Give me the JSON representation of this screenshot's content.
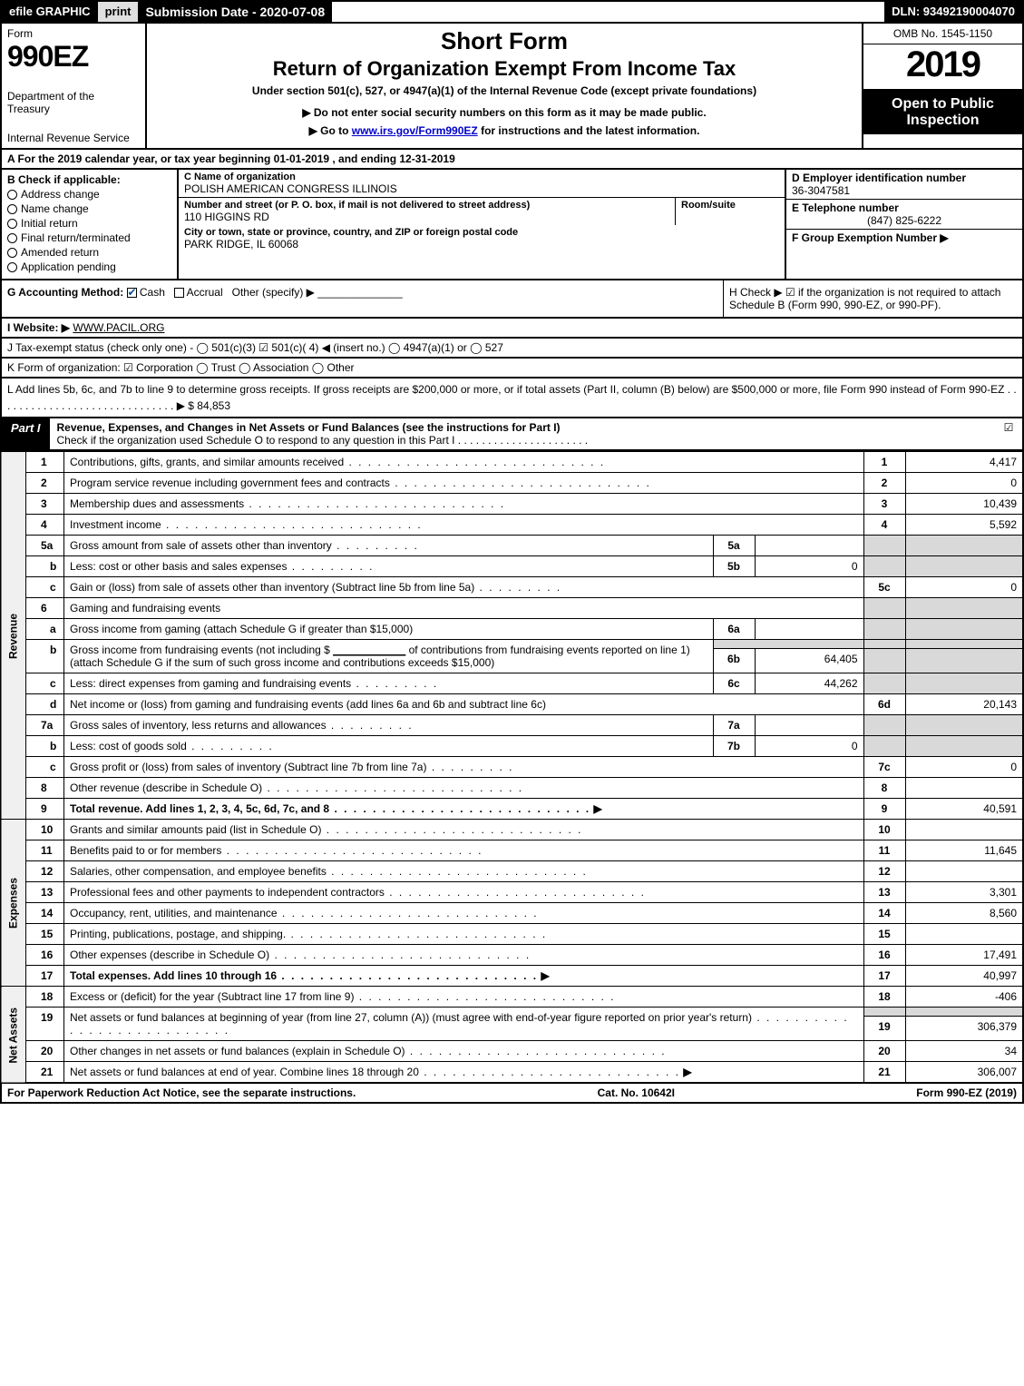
{
  "top_bar": {
    "efile": "efile GRAPHIC",
    "print": "print",
    "submission": "Submission Date - 2020-07-08",
    "dln": "DLN: 93492190004070"
  },
  "header": {
    "form_word": "Form",
    "form_code": "990EZ",
    "dept1": "Department of the Treasury",
    "dept2": "Internal Revenue Service",
    "short_form": "Short Form",
    "title2": "Return of Organization Exempt From Income Tax",
    "subtitle": "Under section 501(c), 527, or 4947(a)(1) of the Internal Revenue Code (except private foundations)",
    "note1": "▶ Do not enter social security numbers on this form as it may be made public.",
    "note2_pre": "▶ Go to ",
    "note2_link": "www.irs.gov/Form990EZ",
    "note2_post": " for instructions and the latest information.",
    "omb": "OMB No. 1545-1150",
    "year": "2019",
    "open_public": "Open to Public Inspection"
  },
  "line_a": "A  For the 2019 calendar year, or tax year beginning 01-01-2019 , and ending 12-31-2019",
  "section_b": {
    "title": "B  Check if applicable:",
    "items": [
      "Address change",
      "Name change",
      "Initial return",
      "Final return/terminated",
      "Amended return",
      "Application pending"
    ]
  },
  "section_c": {
    "name_label": "C Name of organization",
    "org_name": "POLISH AMERICAN CONGRESS ILLINOIS",
    "street_label": "Number and street (or P. O. box, if mail is not delivered to street address)",
    "street": "110 HIGGINS RD",
    "suite_label": "Room/suite",
    "suite": "",
    "city_label": "City or town, state or province, country, and ZIP or foreign postal code",
    "city": "PARK RIDGE, IL  60068"
  },
  "section_d": {
    "label": "D Employer identification number",
    "value": "36-3047581"
  },
  "section_e": {
    "label": "E Telephone number",
    "value": "(847) 825-6222"
  },
  "section_f": {
    "label": "F Group Exemption Number  ▶",
    "value": ""
  },
  "row_g": {
    "label": "G Accounting Method:",
    "cash": "Cash",
    "accrual": "Accrual",
    "other": "Other (specify) ▶"
  },
  "row_h": "H  Check ▶ ☑ if the organization is not required to attach Schedule B (Form 990, 990-EZ, or 990-PF).",
  "row_i": {
    "pre": "I Website: ▶",
    "value": "WWW.PACIL.ORG"
  },
  "row_j": "J Tax-exempt status (check only one) - ◯ 501(c)(3)  ☑ 501(c)( 4) ◀ (insert no.)  ◯ 4947(a)(1) or  ◯ 527",
  "row_k": "K Form of organization:  ☑ Corporation  ◯ Trust  ◯ Association  ◯ Other",
  "row_l": {
    "text": "L Add lines 5b, 6c, and 7b to line 9 to determine gross receipts. If gross receipts are $200,000 or more, or if total assets (Part II, column (B) below) are $500,000 or more, file Form 990 instead of Form 990-EZ  . . . . . . . . . . . . . . . . . . . . . . . . . . . . . . ▶",
    "value": "$ 84,853"
  },
  "part1": {
    "label": "Part I",
    "title": "Revenue, Expenses, and Changes in Net Assets or Fund Balances (see the instructions for Part I)",
    "subtitle": "Check if the organization used Schedule O to respond to any question in this Part I  . . . . . . . . . . . . . . . . . . . . . .",
    "checked": "☑"
  },
  "side_labels": {
    "revenue": "Revenue",
    "expenses": "Expenses",
    "netassets": "Net Assets"
  },
  "lines": {
    "l1": {
      "ln": "1",
      "desc": "Contributions, gifts, grants, and similar amounts received",
      "rl": "1",
      "rv": "4,417"
    },
    "l2": {
      "ln": "2",
      "desc": "Program service revenue including government fees and contracts",
      "rl": "2",
      "rv": "0"
    },
    "l3": {
      "ln": "3",
      "desc": "Membership dues and assessments",
      "rl": "3",
      "rv": "10,439"
    },
    "l4": {
      "ln": "4",
      "desc": "Investment income",
      "rl": "4",
      "rv": "5,592"
    },
    "l5a": {
      "ln": "5a",
      "desc": "Gross amount from sale of assets other than inventory",
      "ml": "5a",
      "mv": ""
    },
    "l5b": {
      "ln": "b",
      "desc": "Less: cost or other basis and sales expenses",
      "ml": "5b",
      "mv": "0"
    },
    "l5c": {
      "ln": "c",
      "desc": "Gain or (loss) from sale of assets other than inventory (Subtract line 5b from line 5a)",
      "rl": "5c",
      "rv": "0"
    },
    "l6": {
      "ln": "6",
      "desc": "Gaming and fundraising events"
    },
    "l6a": {
      "ln": "a",
      "desc": "Gross income from gaming (attach Schedule G if greater than $15,000)",
      "ml": "6a",
      "mv": ""
    },
    "l6b": {
      "ln": "b",
      "desc_pre": "Gross income from fundraising events (not including $ ",
      "desc_mid": " of contributions from fundraising events reported on line 1) (attach Schedule G if the sum of such gross income and contributions exceeds $15,000)",
      "blank": "____________",
      "ml": "6b",
      "mv": "64,405"
    },
    "l6c": {
      "ln": "c",
      "desc": "Less: direct expenses from gaming and fundraising events",
      "ml": "6c",
      "mv": "44,262"
    },
    "l6d": {
      "ln": "d",
      "desc": "Net income or (loss) from gaming and fundraising events (add lines 6a and 6b and subtract line 6c)",
      "rl": "6d",
      "rv": "20,143"
    },
    "l7a": {
      "ln": "7a",
      "desc": "Gross sales of inventory, less returns and allowances",
      "ml": "7a",
      "mv": ""
    },
    "l7b": {
      "ln": "b",
      "desc": "Less: cost of goods sold",
      "ml": "7b",
      "mv": "0"
    },
    "l7c": {
      "ln": "c",
      "desc": "Gross profit or (loss) from sales of inventory (Subtract line 7b from line 7a)",
      "rl": "7c",
      "rv": "0"
    },
    "l8": {
      "ln": "8",
      "desc": "Other revenue (describe in Schedule O)",
      "rl": "8",
      "rv": ""
    },
    "l9": {
      "ln": "9",
      "desc": "Total revenue. Add lines 1, 2, 3, 4, 5c, 6d, 7c, and 8",
      "arrow": "▶",
      "rl": "9",
      "rv": "40,591"
    },
    "l10": {
      "ln": "10",
      "desc": "Grants and similar amounts paid (list in Schedule O)",
      "rl": "10",
      "rv": ""
    },
    "l11": {
      "ln": "11",
      "desc": "Benefits paid to or for members",
      "rl": "11",
      "rv": "11,645"
    },
    "l12": {
      "ln": "12",
      "desc": "Salaries, other compensation, and employee benefits",
      "rl": "12",
      "rv": ""
    },
    "l13": {
      "ln": "13",
      "desc": "Professional fees and other payments to independent contractors",
      "rl": "13",
      "rv": "3,301"
    },
    "l14": {
      "ln": "14",
      "desc": "Occupancy, rent, utilities, and maintenance",
      "rl": "14",
      "rv": "8,560"
    },
    "l15": {
      "ln": "15",
      "desc": "Printing, publications, postage, and shipping.",
      "rl": "15",
      "rv": ""
    },
    "l16": {
      "ln": "16",
      "desc": "Other expenses (describe in Schedule O)",
      "rl": "16",
      "rv": "17,491"
    },
    "l17": {
      "ln": "17",
      "desc": "Total expenses. Add lines 10 through 16",
      "arrow": "▶",
      "rl": "17",
      "rv": "40,997"
    },
    "l18": {
      "ln": "18",
      "desc": "Excess or (deficit) for the year (Subtract line 17 from line 9)",
      "rl": "18",
      "rv": "-406"
    },
    "l19": {
      "ln": "19",
      "desc": "Net assets or fund balances at beginning of year (from line 27, column (A)) (must agree with end-of-year figure reported on prior year's return)",
      "rl": "19",
      "rv": "306,379"
    },
    "l20": {
      "ln": "20",
      "desc": "Other changes in net assets or fund balances (explain in Schedule O)",
      "rl": "20",
      "rv": "34"
    },
    "l21": {
      "ln": "21",
      "desc": "Net assets or fund balances at end of year. Combine lines 18 through 20",
      "arrow": "▶",
      "rl": "21",
      "rv": "306,007"
    }
  },
  "footer": {
    "left": "For Paperwork Reduction Act Notice, see the separate instructions.",
    "center": "Cat. No. 10642I",
    "right": "Form 990-EZ (2019)"
  },
  "colors": {
    "black": "#000000",
    "white": "#ffffff",
    "gray_bg": "#e0e0e0",
    "shade": "#d9d9d9",
    "link": "#0000cc",
    "check_blue": "#0b5394"
  }
}
